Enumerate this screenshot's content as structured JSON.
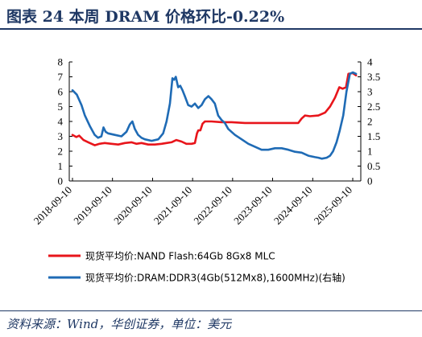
{
  "header": {
    "title": "图表 24   本周 DRAM 价格环比-0.22%"
  },
  "source": {
    "text": "资料来源：Wind，华创证券，单位：美元"
  },
  "colors": {
    "nand": "#e8151b",
    "dram": "#1f6bb5",
    "rule": "#1f3864"
  },
  "chart_data": {
    "type": "line",
    "x_ticks": [
      "2018-09-10",
      "2019-09-10",
      "2020-09-10",
      "2021-09-10",
      "2022-09-10",
      "2023-09-10",
      "2024-09-10",
      "2025-09-10"
    ],
    "y_left": {
      "range": [
        0,
        8
      ],
      "ticks": [
        "0",
        "1",
        "2",
        "3",
        "4",
        "5",
        "6",
        "7",
        "8"
      ]
    },
    "y_right": {
      "range": [
        0,
        4
      ],
      "ticks": [
        "0",
        "0.5",
        "1",
        "1.5",
        "2",
        "2.5",
        "3",
        "3.5",
        "4"
      ]
    },
    "grid": false,
    "legend_position": "bottom",
    "series": [
      {
        "name": "现货平均价:NAND Flash:64Gb 8Gx8 MLC",
        "axis": "left",
        "points": [
          [
            "2018-09-10",
            3.1
          ],
          [
            "2018-10-15",
            2.95
          ],
          [
            "2018-11-10",
            3.05
          ],
          [
            "2018-12-20",
            2.75
          ],
          [
            "2019-02-01",
            2.6
          ],
          [
            "2019-04-01",
            2.4
          ],
          [
            "2019-05-15",
            2.5
          ],
          [
            "2019-07-01",
            2.55
          ],
          [
            "2019-09-01",
            2.5
          ],
          [
            "2019-11-01",
            2.45
          ],
          [
            "2020-01-01",
            2.55
          ],
          [
            "2020-03-01",
            2.6
          ],
          [
            "2020-04-15",
            2.5
          ],
          [
            "2020-06-01",
            2.55
          ],
          [
            "2020-08-01",
            2.45
          ],
          [
            "2020-10-01",
            2.45
          ],
          [
            "2020-12-01",
            2.5
          ],
          [
            "2021-01-15",
            2.55
          ],
          [
            "2021-03-01",
            2.6
          ],
          [
            "2021-04-15",
            2.75
          ],
          [
            "2021-06-01",
            2.65
          ],
          [
            "2021-07-15",
            2.5
          ],
          [
            "2021-09-01",
            2.5
          ],
          [
            "2021-10-01",
            2.55
          ],
          [
            "2021-10-20",
            3.2
          ],
          [
            "2021-11-01",
            3.4
          ],
          [
            "2021-11-20",
            3.4
          ],
          [
            "2021-12-10",
            3.85
          ],
          [
            "2022-01-01",
            4.0
          ],
          [
            "2022-03-01",
            4.0
          ],
          [
            "2022-06-01",
            3.95
          ],
          [
            "2022-09-01",
            3.95
          ],
          [
            "2023-01-01",
            3.9
          ],
          [
            "2023-06-01",
            3.9
          ],
          [
            "2024-01-01",
            3.9
          ],
          [
            "2024-05-01",
            3.9
          ],
          [
            "2024-06-01",
            4.2
          ],
          [
            "2024-07-01",
            4.4
          ],
          [
            "2024-08-15",
            4.35
          ],
          [
            "2024-11-01",
            4.4
          ],
          [
            "2025-01-01",
            4.6
          ],
          [
            "2025-02-15",
            5.0
          ],
          [
            "2025-04-01",
            5.6
          ],
          [
            "2025-05-10",
            6.3
          ],
          [
            "2025-06-10",
            6.2
          ],
          [
            "2025-07-10",
            6.3
          ],
          [
            "2025-08-01",
            7.2
          ],
          [
            "2025-09-10",
            7.25
          ],
          [
            "2025-10-10",
            7.1
          ]
        ]
      },
      {
        "name": "现货平均价:DRAM:DDR3(4Gb(512Mx8),1600MHz)(右轴)",
        "axis": "right",
        "points": [
          [
            "2018-09-10",
            3.05
          ],
          [
            "2018-10-20",
            2.9
          ],
          [
            "2018-12-01",
            2.55
          ],
          [
            "2019-01-01",
            2.2
          ],
          [
            "2019-02-15",
            1.85
          ],
          [
            "2019-04-01",
            1.55
          ],
          [
            "2019-05-01",
            1.45
          ],
          [
            "2019-06-01",
            1.5
          ],
          [
            "2019-06-20",
            1.8
          ],
          [
            "2019-07-10",
            1.65
          ],
          [
            "2019-08-01",
            1.6
          ],
          [
            "2019-10-01",
            1.55
          ],
          [
            "2019-12-01",
            1.5
          ],
          [
            "2020-01-15",
            1.65
          ],
          [
            "2020-02-15",
            1.9
          ],
          [
            "2020-03-10",
            2.0
          ],
          [
            "2020-04-01",
            1.75
          ],
          [
            "2020-05-01",
            1.55
          ],
          [
            "2020-06-01",
            1.45
          ],
          [
            "2020-07-01",
            1.4
          ],
          [
            "2020-09-01",
            1.35
          ],
          [
            "2020-11-01",
            1.4
          ],
          [
            "2020-12-15",
            1.6
          ],
          [
            "2021-01-15",
            2.0
          ],
          [
            "2021-02-15",
            2.6
          ],
          [
            "2021-03-10",
            3.45
          ],
          [
            "2021-03-25",
            3.4
          ],
          [
            "2021-04-10",
            3.5
          ],
          [
            "2021-05-01",
            3.15
          ],
          [
            "2021-05-20",
            3.2
          ],
          [
            "2021-06-10",
            3.05
          ],
          [
            "2021-07-01",
            2.85
          ],
          [
            "2021-08-01",
            2.55
          ],
          [
            "2021-09-01",
            2.5
          ],
          [
            "2021-10-01",
            2.6
          ],
          [
            "2021-11-01",
            2.45
          ],
          [
            "2021-12-01",
            2.55
          ],
          [
            "2022-01-01",
            2.75
          ],
          [
            "2022-02-01",
            2.85
          ],
          [
            "2022-03-01",
            2.75
          ],
          [
            "2022-04-01",
            2.6
          ],
          [
            "2022-05-01",
            2.2
          ],
          [
            "2022-06-01",
            2.05
          ],
          [
            "2022-07-01",
            1.95
          ],
          [
            "2022-08-01",
            1.75
          ],
          [
            "2022-10-01",
            1.55
          ],
          [
            "2022-12-01",
            1.4
          ],
          [
            "2023-02-01",
            1.25
          ],
          [
            "2023-04-01",
            1.15
          ],
          [
            "2023-06-01",
            1.05
          ],
          [
            "2023-08-01",
            1.05
          ],
          [
            "2023-10-01",
            1.1
          ],
          [
            "2023-12-01",
            1.1
          ],
          [
            "2024-02-01",
            1.05
          ],
          [
            "2024-04-01",
            0.98
          ],
          [
            "2024-06-01",
            0.95
          ],
          [
            "2024-08-01",
            0.85
          ],
          [
            "2024-10-01",
            0.8
          ],
          [
            "2024-11-01",
            0.78
          ],
          [
            "2024-12-01",
            0.75
          ],
          [
            "2025-01-15",
            0.78
          ],
          [
            "2025-02-15",
            0.85
          ],
          [
            "2025-03-15",
            1.0
          ],
          [
            "2025-04-15",
            1.3
          ],
          [
            "2025-05-15",
            1.7
          ],
          [
            "2025-06-15",
            2.2
          ],
          [
            "2025-07-15",
            3.0
          ],
          [
            "2025-08-15",
            3.6
          ],
          [
            "2025-09-10",
            3.65
          ],
          [
            "2025-10-10",
            3.6
          ]
        ]
      }
    ]
  }
}
